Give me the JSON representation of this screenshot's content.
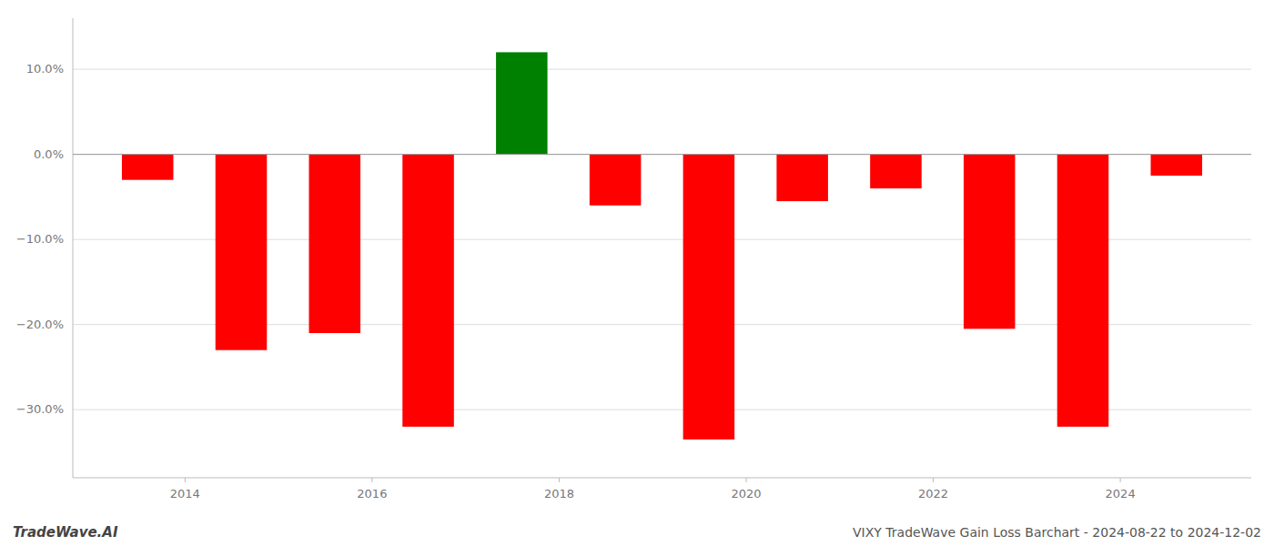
{
  "chart_data": {
    "type": "bar",
    "title": "VIXY TradeWave Gain Loss Barchart - 2024-08-22 to 2024-12-02",
    "annotations": [
      "TradeWave.AI"
    ],
    "x": [
      2013.6,
      2014.6,
      2015.6,
      2016.6,
      2017.6,
      2018.6,
      2019.6,
      2020.6,
      2021.6,
      2022.6,
      2023.6,
      2024.6
    ],
    "values": [
      -3.0,
      -23.0,
      -21.0,
      -32.0,
      12.0,
      -6.0,
      -33.5,
      -5.5,
      -4.0,
      -20.5,
      -32.0,
      -2.5
    ],
    "colors": [
      "#ff0000",
      "#ff0000",
      "#ff0000",
      "#ff0000",
      "#008000",
      "#ff0000",
      "#ff0000",
      "#ff0000",
      "#ff0000",
      "#ff0000",
      "#ff0000",
      "#ff0000"
    ],
    "xlim": [
      2012.8,
      2025.4
    ],
    "xticks": [
      2014,
      2016,
      2018,
      2020,
      2022,
      2024
    ],
    "ylim": [
      -38,
      16
    ],
    "yticks": [
      {
        "value": 10.0,
        "label": "10.0%"
      },
      {
        "value": 0.0,
        "label": "0.0%"
      },
      {
        "value": -10.0,
        "label": "−10.0%"
      },
      {
        "value": -20.0,
        "label": "−20.0%"
      },
      {
        "value": -30.0,
        "label": "−30.0%"
      }
    ],
    "grid": true
  }
}
